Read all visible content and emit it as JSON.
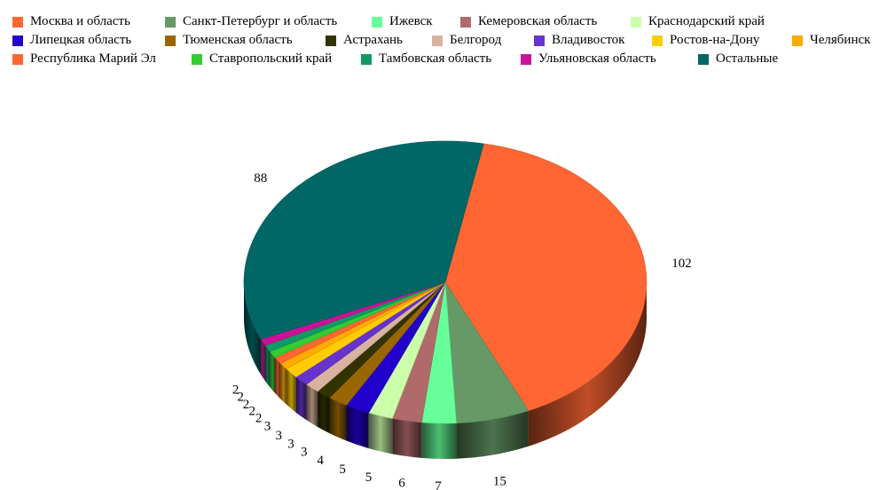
{
  "chart_data": {
    "type": "pie",
    "title": "",
    "legend_position": "top",
    "three_d": true,
    "slices": [
      {
        "label": "Москва и область",
        "value": 102,
        "color": "#ff6633"
      },
      {
        "label": "Санкт-Петербург и область",
        "value": 15,
        "color": "#669966"
      },
      {
        "label": "Ижевск",
        "value": 7,
        "color": "#66ff99"
      },
      {
        "label": "Кемеровская область",
        "value": 6,
        "color": "#b06a6a"
      },
      {
        "label": "Краснодарский край",
        "value": 5,
        "color": "#ccffaa"
      },
      {
        "label": "Липецкая область",
        "value": 5,
        "color": "#2200cc"
      },
      {
        "label": "Тюменская область",
        "value": 4,
        "color": "#996600"
      },
      {
        "label": "Астрахань",
        "value": 3,
        "color": "#333300"
      },
      {
        "label": "Белгород",
        "value": 3,
        "color": "#d9b3a0"
      },
      {
        "label": "Владивосток",
        "value": 3,
        "color": "#6633cc"
      },
      {
        "label": "Ростов-на-Дону",
        "value": 3,
        "color": "#ffcc00"
      },
      {
        "label": "Челябинск",
        "value": 2,
        "color": "#ffaa00"
      },
      {
        "label": "Республика Марий Эл",
        "value": 2,
        "color": "#ff6633"
      },
      {
        "label": "Ставропольский край",
        "value": 2,
        "color": "#33cc33"
      },
      {
        "label": "Тамбовская область",
        "value": 2,
        "color": "#119966"
      },
      {
        "label": "Ульяновская область",
        "value": 2,
        "color": "#cc1199"
      },
      {
        "label": "Остальные",
        "value": 88,
        "color": "#006666"
      }
    ]
  }
}
